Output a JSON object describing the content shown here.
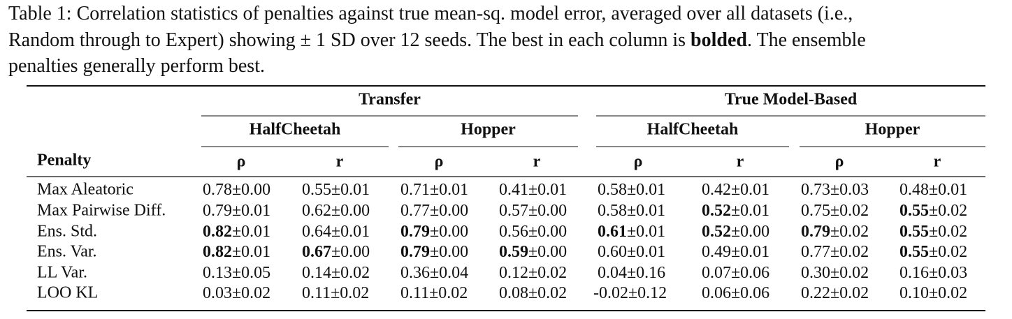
{
  "caption": {
    "label": "Table 1:",
    "lines": [
      [
        {
          "text": "Correlation statistics of penalties against true mean-sq. model error, averaged over all datasets (i.e.,",
          "bold": false
        }
      ],
      [
        {
          "text": "Random through to Expert) showing ± 1 SD over 12 seeds. The best in each column is ",
          "bold": false
        },
        {
          "text": "bolded",
          "bold": true
        },
        {
          "text": ". The ensemble",
          "bold": false
        }
      ],
      [
        {
          "text": "penalties generally perform best.",
          "bold": false
        }
      ]
    ]
  },
  "table": {
    "penalty_header": "Penalty",
    "groups": [
      {
        "label": "Transfer",
        "subgroups": [
          {
            "label": "HalfCheetah",
            "columns": [
              "ρ",
              "r"
            ]
          },
          {
            "label": "Hopper",
            "columns": [
              "ρ",
              "r"
            ]
          }
        ]
      },
      {
        "label": "True Model-Based",
        "subgroups": [
          {
            "label": "HalfCheetah",
            "columns": [
              "ρ",
              "r"
            ]
          },
          {
            "label": "Hopper",
            "columns": [
              "ρ",
              "r"
            ]
          }
        ]
      }
    ],
    "rows": [
      {
        "penalty": "Max Aleatoric",
        "cells": [
          {
            "mean": "0.78",
            "sd": "±0.00",
            "bold": false
          },
          {
            "mean": "0.55",
            "sd": "±0.01",
            "bold": false
          },
          {
            "mean": "0.71",
            "sd": "±0.01",
            "bold": false
          },
          {
            "mean": "0.41",
            "sd": "±0.01",
            "bold": false
          },
          {
            "mean": "0.58",
            "sd": "±0.01",
            "bold": false
          },
          {
            "mean": "0.42",
            "sd": "±0.01",
            "bold": false
          },
          {
            "mean": "0.73",
            "sd": "±0.03",
            "bold": false
          },
          {
            "mean": "0.48",
            "sd": "±0.01",
            "bold": false
          }
        ]
      },
      {
        "penalty": "Max Pairwise Diff.",
        "cells": [
          {
            "mean": "0.79",
            "sd": "±0.01",
            "bold": false
          },
          {
            "mean": "0.62",
            "sd": "±0.00",
            "bold": false
          },
          {
            "mean": "0.77",
            "sd": "±0.00",
            "bold": false
          },
          {
            "mean": "0.57",
            "sd": "±0.00",
            "bold": false
          },
          {
            "mean": "0.58",
            "sd": "±0.01",
            "bold": false
          },
          {
            "mean": "0.52",
            "sd": "±0.01",
            "bold": true
          },
          {
            "mean": "0.75",
            "sd": "±0.02",
            "bold": false
          },
          {
            "mean": "0.55",
            "sd": "±0.02",
            "bold": true
          }
        ]
      },
      {
        "penalty": "Ens. Std.",
        "cells": [
          {
            "mean": "0.82",
            "sd": "±0.01",
            "bold": true
          },
          {
            "mean": "0.64",
            "sd": "±0.01",
            "bold": false
          },
          {
            "mean": "0.79",
            "sd": "±0.00",
            "bold": true
          },
          {
            "mean": "0.56",
            "sd": "±0.00",
            "bold": false
          },
          {
            "mean": "0.61",
            "sd": "±0.01",
            "bold": true
          },
          {
            "mean": "0.52",
            "sd": "±0.00",
            "bold": true
          },
          {
            "mean": "0.79",
            "sd": "±0.02",
            "bold": true
          },
          {
            "mean": "0.55",
            "sd": "±0.02",
            "bold": true
          }
        ]
      },
      {
        "penalty": "Ens. Var.",
        "cells": [
          {
            "mean": "0.82",
            "sd": "±0.01",
            "bold": true
          },
          {
            "mean": "0.67",
            "sd": "±0.00",
            "bold": true
          },
          {
            "mean": "0.79",
            "sd": "±0.00",
            "bold": true
          },
          {
            "mean": "0.59",
            "sd": "±0.00",
            "bold": true
          },
          {
            "mean": "0.60",
            "sd": "±0.01",
            "bold": false
          },
          {
            "mean": "0.49",
            "sd": "±0.01",
            "bold": false
          },
          {
            "mean": "0.77",
            "sd": "±0.02",
            "bold": false
          },
          {
            "mean": "0.55",
            "sd": "±0.02",
            "bold": true
          }
        ]
      },
      {
        "penalty": "LL Var.",
        "cells": [
          {
            "mean": "0.13",
            "sd": "±0.05",
            "bold": false
          },
          {
            "mean": "0.14",
            "sd": "±0.02",
            "bold": false
          },
          {
            "mean": "0.36",
            "sd": "±0.04",
            "bold": false
          },
          {
            "mean": "0.12",
            "sd": "±0.02",
            "bold": false
          },
          {
            "mean": "0.04",
            "sd": "±0.16",
            "bold": false
          },
          {
            "mean": "0.07",
            "sd": "±0.06",
            "bold": false
          },
          {
            "mean": "0.30",
            "sd": "±0.02",
            "bold": false
          },
          {
            "mean": "0.16",
            "sd": "±0.03",
            "bold": false
          }
        ]
      },
      {
        "penalty": "LOO KL",
        "cells": [
          {
            "mean": "0.03",
            "sd": "±0.02",
            "bold": false
          },
          {
            "mean": "0.11",
            "sd": "±0.02",
            "bold": false
          },
          {
            "mean": "0.11",
            "sd": "±0.02",
            "bold": false
          },
          {
            "mean": "0.08",
            "sd": "±0.02",
            "bold": false
          },
          {
            "mean": "-0.02",
            "sd": "±0.12",
            "bold": false
          },
          {
            "mean": "0.06",
            "sd": "±0.06",
            "bold": false
          },
          {
            "mean": "0.22",
            "sd": "±0.02",
            "bold": false
          },
          {
            "mean": "0.10",
            "sd": "±0.02",
            "bold": false
          }
        ]
      }
    ]
  }
}
